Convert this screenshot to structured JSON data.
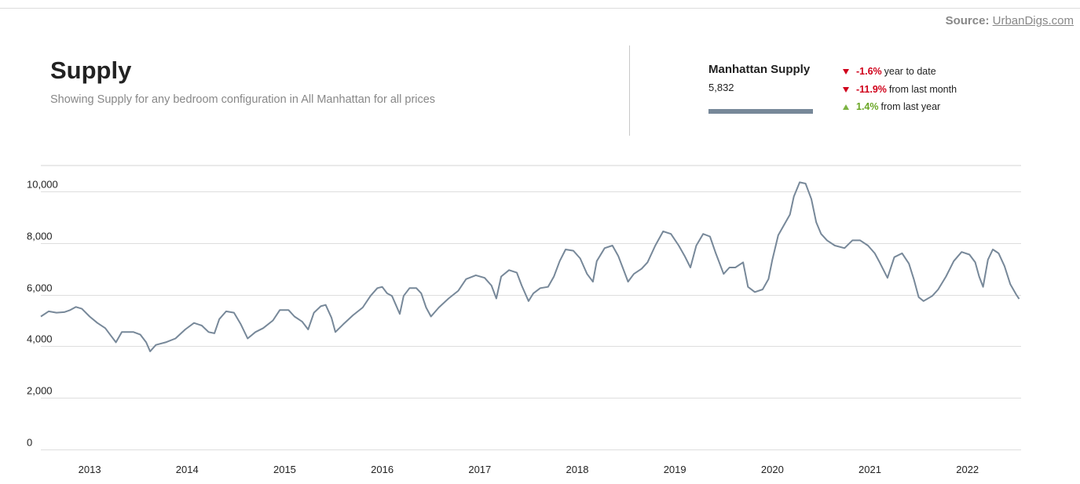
{
  "source": {
    "label": "Source:",
    "link_text": "UrbanDigs.com"
  },
  "header": {
    "title": "Supply",
    "subtitle": "Showing Supply for any bedroom configuration in All Manhattan for all prices"
  },
  "summary": {
    "series_title": "Manhattan Supply",
    "series_value": "5,832",
    "series_color": "#778899",
    "stats": [
      {
        "direction": "down",
        "pct": "-1.6%",
        "label": "year to date",
        "color": "#d0021b"
      },
      {
        "direction": "down",
        "pct": "-11.9%",
        "label": "from last month",
        "color": "#d0021b"
      },
      {
        "direction": "up",
        "pct": "1.4%",
        "label": "from last year",
        "color": "#6aa625"
      }
    ]
  },
  "chart_data": {
    "type": "line",
    "title": "",
    "xlabel": "",
    "ylabel": "",
    "x_domain": [
      2012.5,
      2022.55
    ],
    "ylim": [
      0,
      11000
    ],
    "y_ticks": [
      0,
      2000,
      4000,
      6000,
      8000,
      10000
    ],
    "y_tick_labels": [
      "0",
      "2,000",
      "4,000",
      "6,000",
      "8,000",
      "10,000"
    ],
    "x_ticks": [
      2013,
      2014,
      2015,
      2016,
      2017,
      2018,
      2019,
      2020,
      2021,
      2022
    ],
    "x_tick_labels": [
      "2013",
      "2014",
      "2015",
      "2016",
      "2017",
      "2018",
      "2019",
      "2020",
      "2021",
      "2022"
    ],
    "grid": true,
    "series": [
      {
        "color": "#778899",
        "points": [
          [
            2012.5,
            5150
          ],
          [
            2012.58,
            5350
          ],
          [
            2012.66,
            5300
          ],
          [
            2012.74,
            5320
          ],
          [
            2012.8,
            5400
          ],
          [
            2012.86,
            5520
          ],
          [
            2012.92,
            5450
          ],
          [
            2013.0,
            5150
          ],
          [
            2013.08,
            4900
          ],
          [
            2013.16,
            4700
          ],
          [
            2013.22,
            4400
          ],
          [
            2013.27,
            4150
          ],
          [
            2013.33,
            4550
          ],
          [
            2013.45,
            4550
          ],
          [
            2013.52,
            4450
          ],
          [
            2013.58,
            4150
          ],
          [
            2013.62,
            3800
          ],
          [
            2013.68,
            4050
          ],
          [
            2013.78,
            4150
          ],
          [
            2013.88,
            4300
          ],
          [
            2013.98,
            4650
          ],
          [
            2014.07,
            4900
          ],
          [
            2014.15,
            4800
          ],
          [
            2014.22,
            4550
          ],
          [
            2014.28,
            4500
          ],
          [
            2014.33,
            5050
          ],
          [
            2014.4,
            5350
          ],
          [
            2014.48,
            5300
          ],
          [
            2014.55,
            4850
          ],
          [
            2014.62,
            4300
          ],
          [
            2014.7,
            4550
          ],
          [
            2014.78,
            4700
          ],
          [
            2014.88,
            5000
          ],
          [
            2014.95,
            5400
          ],
          [
            2015.04,
            5400
          ],
          [
            2015.1,
            5150
          ],
          [
            2015.18,
            4950
          ],
          [
            2015.24,
            4650
          ],
          [
            2015.3,
            5300
          ],
          [
            2015.37,
            5550
          ],
          [
            2015.42,
            5600
          ],
          [
            2015.48,
            5100
          ],
          [
            2015.52,
            4550
          ],
          [
            2015.6,
            4850
          ],
          [
            2015.7,
            5200
          ],
          [
            2015.8,
            5500
          ],
          [
            2015.88,
            5950
          ],
          [
            2015.95,
            6250
          ],
          [
            2016.0,
            6300
          ],
          [
            2016.05,
            6050
          ],
          [
            2016.1,
            5950
          ],
          [
            2016.14,
            5600
          ],
          [
            2016.18,
            5250
          ],
          [
            2016.22,
            5950
          ],
          [
            2016.28,
            6250
          ],
          [
            2016.35,
            6250
          ],
          [
            2016.4,
            6050
          ],
          [
            2016.45,
            5500
          ],
          [
            2016.5,
            5150
          ],
          [
            2016.58,
            5500
          ],
          [
            2016.68,
            5850
          ],
          [
            2016.78,
            6150
          ],
          [
            2016.86,
            6600
          ],
          [
            2016.96,
            6750
          ],
          [
            2017.05,
            6650
          ],
          [
            2017.12,
            6350
          ],
          [
            2017.17,
            5850
          ],
          [
            2017.22,
            6700
          ],
          [
            2017.3,
            6950
          ],
          [
            2017.38,
            6850
          ],
          [
            2017.43,
            6350
          ],
          [
            2017.5,
            5750
          ],
          [
            2017.55,
            6050
          ],
          [
            2017.62,
            6250
          ],
          [
            2017.7,
            6300
          ],
          [
            2017.76,
            6700
          ],
          [
            2017.82,
            7300
          ],
          [
            2017.88,
            7750
          ],
          [
            2017.96,
            7700
          ],
          [
            2018.03,
            7400
          ],
          [
            2018.1,
            6800
          ],
          [
            2018.16,
            6500
          ],
          [
            2018.2,
            7300
          ],
          [
            2018.28,
            7800
          ],
          [
            2018.36,
            7900
          ],
          [
            2018.42,
            7500
          ],
          [
            2018.48,
            6900
          ],
          [
            2018.52,
            6500
          ],
          [
            2018.58,
            6800
          ],
          [
            2018.66,
            7000
          ],
          [
            2018.72,
            7250
          ],
          [
            2018.8,
            7900
          ],
          [
            2018.88,
            8450
          ],
          [
            2018.96,
            8350
          ],
          [
            2019.04,
            7900
          ],
          [
            2019.1,
            7500
          ],
          [
            2019.16,
            7050
          ],
          [
            2019.22,
            7900
          ],
          [
            2019.29,
            8350
          ],
          [
            2019.36,
            8250
          ],
          [
            2019.42,
            7600
          ],
          [
            2019.5,
            6800
          ],
          [
            2019.56,
            7050
          ],
          [
            2019.62,
            7050
          ],
          [
            2019.7,
            7250
          ],
          [
            2019.75,
            6300
          ],
          [
            2019.82,
            6100
          ],
          [
            2019.9,
            6200
          ],
          [
            2019.96,
            6600
          ],
          [
            2020.0,
            7350
          ],
          [
            2020.06,
            8300
          ],
          [
            2020.12,
            8700
          ],
          [
            2020.18,
            9100
          ],
          [
            2020.22,
            9800
          ],
          [
            2020.28,
            10350
          ],
          [
            2020.34,
            10300
          ],
          [
            2020.4,
            9700
          ],
          [
            2020.45,
            8800
          ],
          [
            2020.5,
            8350
          ],
          [
            2020.56,
            8100
          ],
          [
            2020.64,
            7900
          ],
          [
            2020.74,
            7800
          ],
          [
            2020.82,
            8100
          ],
          [
            2020.9,
            8100
          ],
          [
            2020.98,
            7900
          ],
          [
            2021.05,
            7600
          ],
          [
            2021.1,
            7250
          ],
          [
            2021.18,
            6650
          ],
          [
            2021.25,
            7450
          ],
          [
            2021.33,
            7600
          ],
          [
            2021.4,
            7200
          ],
          [
            2021.45,
            6600
          ],
          [
            2021.5,
            5900
          ],
          [
            2021.55,
            5750
          ],
          [
            2021.64,
            5950
          ],
          [
            2021.7,
            6200
          ],
          [
            2021.78,
            6700
          ],
          [
            2021.86,
            7300
          ],
          [
            2021.94,
            7650
          ],
          [
            2022.02,
            7550
          ],
          [
            2022.08,
            7250
          ],
          [
            2022.12,
            6700
          ],
          [
            2022.16,
            6300
          ],
          [
            2022.21,
            7350
          ],
          [
            2022.26,
            7750
          ],
          [
            2022.32,
            7600
          ],
          [
            2022.38,
            7100
          ],
          [
            2022.44,
            6400
          ],
          [
            2022.5,
            6000
          ],
          [
            2022.53,
            5832
          ]
        ]
      }
    ]
  }
}
